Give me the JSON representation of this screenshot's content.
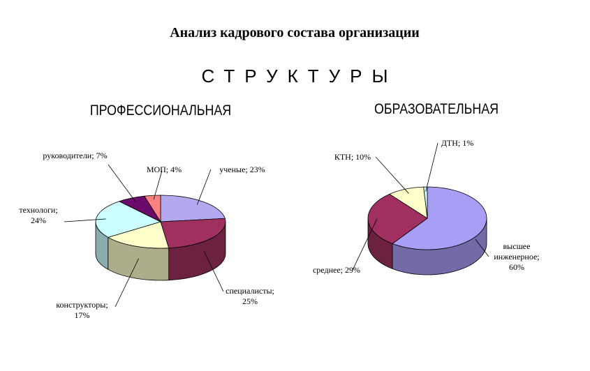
{
  "title": "Анализ кадрового состава организации",
  "heading": "СТРУКТУРЫ",
  "chart_data": [
    {
      "type": "pie",
      "title": "ПРОФЕССИОНАЛЬНАЯ",
      "categories": [
        "ученые;",
        "специалисты;",
        "конструкторы;",
        "технологи;",
        "руководители;",
        "МОП;"
      ],
      "values": [
        23,
        25,
        17,
        24,
        7,
        4
      ],
      "value_labels": [
        "23%",
        "25%",
        "17%",
        "24%",
        "7%",
        "4%"
      ],
      "colors": [
        "#b4a9f0",
        "#a0305f",
        "#ffffcc",
        "#ccffff",
        "#6b0a6b",
        "#ff8080"
      ]
    },
    {
      "type": "pie",
      "title": "ОБРАЗОВАТЕЛЬНАЯ",
      "categories": [
        "высшее инженерное;",
        "среднее;",
        "КТН;",
        "ДТН;"
      ],
      "values": [
        60,
        29,
        10,
        1
      ],
      "value_labels": [
        "60%",
        "29%",
        "10%",
        "1%"
      ],
      "colors": [
        "#a99ef5",
        "#a0305f",
        "#ffffcc",
        "#ccffff"
      ]
    }
  ]
}
